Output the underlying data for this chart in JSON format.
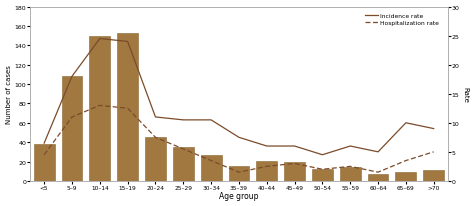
{
  "age_groups": [
    "<5",
    "5–9",
    "10–14",
    "15–19",
    "20–24",
    "25–29",
    "30–34",
    "35–39",
    "40–44",
    "45–49",
    "50–54",
    "55–59",
    "60–64",
    "65–69",
    ">70"
  ],
  "bar_values": [
    38,
    108,
    150,
    153,
    45,
    35,
    27,
    15,
    21,
    19,
    12,
    14,
    7,
    9,
    11
  ],
  "incidence_rate": [
    6.5,
    18.0,
    24.5,
    24.0,
    11.0,
    10.5,
    10.5,
    7.5,
    6.0,
    6.0,
    4.5,
    6.0,
    5.0,
    10.0,
    9.0
  ],
  "hosp_rate": [
    4.5,
    11.0,
    13.0,
    12.5,
    7.5,
    5.5,
    3.5,
    1.5,
    2.5,
    3.0,
    2.0,
    2.5,
    1.5,
    3.5,
    5.0
  ],
  "bar_color": "#a07840",
  "bar_edge_color": "#8a6530",
  "brown": "#7B4B2A",
  "ylabel_left": "Number of cases",
  "ylabel_right": "Rate",
  "xlabel": "Age group",
  "ylim_left": [
    0,
    180
  ],
  "ylim_right": [
    0,
    30
  ],
  "yticks_left": [
    0,
    20,
    40,
    60,
    80,
    100,
    120,
    140,
    160,
    180
  ],
  "yticks_right": [
    0,
    5,
    10,
    15,
    20,
    25,
    30
  ],
  "legend_incidence": "Incidence rate",
  "legend_hosp": "Hospitalization rate",
  "bg_color": "#ffffff",
  "figsize": [
    4.74,
    2.07
  ],
  "dpi": 100
}
